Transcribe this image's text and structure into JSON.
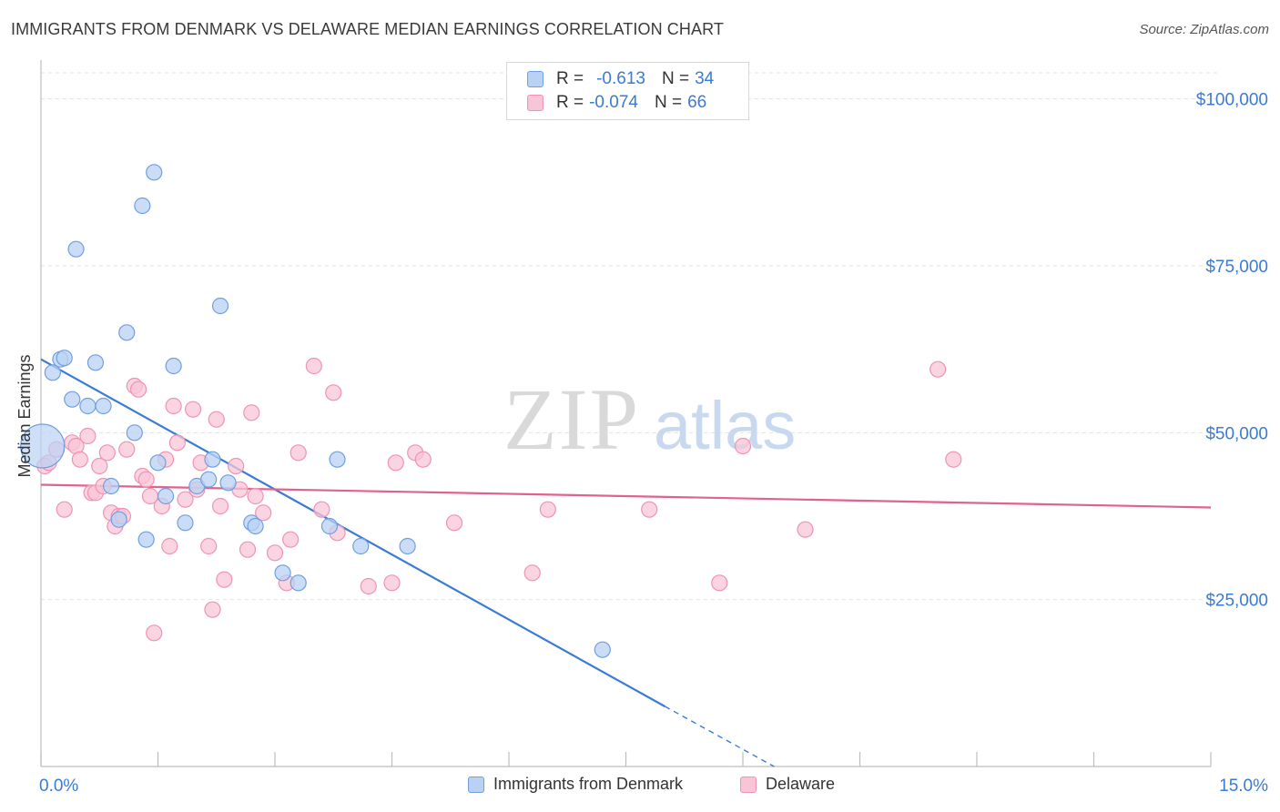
{
  "title": "IMMIGRANTS FROM DENMARK VS DELAWARE MEDIAN EARNINGS CORRELATION CHART",
  "source": "Source: ZipAtlas.com",
  "watermark": {
    "zip": "ZIP",
    "atlas": "atlas"
  },
  "colors": {
    "blue": "#3a7bd5",
    "blue_fill": "#b9d2f3",
    "blue_stroke": "#6f9fe0",
    "pink": "#e0628f",
    "pink_fill": "#f8c5d6",
    "pink_stroke": "#ef93b3",
    "axis_label": "#3a7bd5",
    "grid": "#e3e3e3"
  },
  "legend": {
    "rows": [
      {
        "r_label": "R =",
        "r_value": "-0.613",
        "n_label": "N =",
        "n_value": "34"
      },
      {
        "r_label": "R =",
        "r_value": "-0.074",
        "n_label": "N =",
        "n_value": "66"
      }
    ]
  },
  "chart_data": {
    "type": "scatter",
    "title": "IMMIGRANTS FROM DENMARK VS DELAWARE MEDIAN EARNINGS CORRELATION CHART",
    "xlabel": "",
    "ylabel": "Median Earnings",
    "xlim": [
      0,
      15
    ],
    "ylim": [
      0,
      105000
    ],
    "x_tick_labels": [
      "0.0%",
      "15.0%"
    ],
    "y_ticks": [
      25000,
      50000,
      75000,
      100000
    ],
    "y_tick_labels": [
      "$25,000",
      "$50,000",
      "$75,000",
      "$100,000"
    ],
    "grid": true,
    "legend_position": "top-center",
    "series": [
      {
        "name": "Immigrants from Denmark",
        "color": "#3a7bd5",
        "points": [
          [
            0.02,
            48000
          ],
          [
            0.15,
            59000
          ],
          [
            0.25,
            61000
          ],
          [
            0.3,
            61200
          ],
          [
            0.45,
            77500
          ],
          [
            0.4,
            55000
          ],
          [
            0.6,
            54000
          ],
          [
            0.7,
            60500
          ],
          [
            0.8,
            54000
          ],
          [
            0.9,
            42000
          ],
          [
            1.0,
            37000
          ],
          [
            1.1,
            65000
          ],
          [
            1.2,
            50000
          ],
          [
            1.3,
            84000
          ],
          [
            1.35,
            34000
          ],
          [
            1.45,
            89000
          ],
          [
            1.5,
            45500
          ],
          [
            1.6,
            40500
          ],
          [
            1.7,
            60000
          ],
          [
            1.85,
            36500
          ],
          [
            2.0,
            42000
          ],
          [
            2.15,
            43000
          ],
          [
            2.2,
            46000
          ],
          [
            2.3,
            69000
          ],
          [
            2.4,
            42500
          ],
          [
            2.7,
            36500
          ],
          [
            2.75,
            36000
          ],
          [
            3.1,
            29000
          ],
          [
            3.3,
            27500
          ],
          [
            3.7,
            36000
          ],
          [
            3.8,
            46000
          ],
          [
            4.1,
            33000
          ],
          [
            4.7,
            33000
          ],
          [
            7.2,
            17500
          ]
        ],
        "trend": {
          "x1": 0.0,
          "y1": 61000,
          "x2": 8.0,
          "y2": 9000,
          "dashed_to_x": 9.4,
          "dashed_to_y": 0
        }
      },
      {
        "name": "Delaware",
        "color": "#e0628f",
        "points": [
          [
            0.05,
            45000
          ],
          [
            0.1,
            45500
          ],
          [
            0.2,
            47500
          ],
          [
            0.3,
            38500
          ],
          [
            0.4,
            48500
          ],
          [
            0.45,
            48000
          ],
          [
            0.5,
            46000
          ],
          [
            0.6,
            49500
          ],
          [
            0.65,
            41000
          ],
          [
            0.7,
            41000
          ],
          [
            0.75,
            45000
          ],
          [
            0.8,
            42000
          ],
          [
            0.85,
            47000
          ],
          [
            0.9,
            38000
          ],
          [
            0.95,
            36000
          ],
          [
            1.0,
            37500
          ],
          [
            1.05,
            37500
          ],
          [
            1.1,
            47500
          ],
          [
            1.2,
            57000
          ],
          [
            1.25,
            56500
          ],
          [
            1.3,
            43500
          ],
          [
            1.35,
            43000
          ],
          [
            1.4,
            40500
          ],
          [
            1.45,
            20000
          ],
          [
            1.55,
            39000
          ],
          [
            1.6,
            46000
          ],
          [
            1.65,
            33000
          ],
          [
            1.7,
            54000
          ],
          [
            1.75,
            48500
          ],
          [
            1.85,
            40000
          ],
          [
            1.95,
            53500
          ],
          [
            2.0,
            41500
          ],
          [
            2.05,
            45500
          ],
          [
            2.15,
            33000
          ],
          [
            2.2,
            23500
          ],
          [
            2.25,
            52000
          ],
          [
            2.3,
            39000
          ],
          [
            2.35,
            28000
          ],
          [
            2.5,
            45000
          ],
          [
            2.55,
            41500
          ],
          [
            2.65,
            32500
          ],
          [
            2.7,
            53000
          ],
          [
            2.75,
            40500
          ],
          [
            2.85,
            38000
          ],
          [
            3.0,
            32000
          ],
          [
            3.15,
            27500
          ],
          [
            3.2,
            34000
          ],
          [
            3.3,
            47000
          ],
          [
            3.5,
            60000
          ],
          [
            3.6,
            38500
          ],
          [
            3.75,
            56000
          ],
          [
            3.8,
            35000
          ],
          [
            4.2,
            27000
          ],
          [
            4.5,
            27500
          ],
          [
            4.55,
            45500
          ],
          [
            4.8,
            47000
          ],
          [
            4.9,
            46000
          ],
          [
            5.3,
            36500
          ],
          [
            6.3,
            29000
          ],
          [
            6.5,
            38500
          ],
          [
            7.8,
            38500
          ],
          [
            8.7,
            27500
          ],
          [
            9.0,
            48000
          ],
          [
            9.8,
            35500
          ],
          [
            11.5,
            59500
          ],
          [
            11.7,
            46000
          ]
        ],
        "trend": {
          "x1": 0.0,
          "y1": 42200,
          "x2": 15.0,
          "y2": 38800
        }
      }
    ]
  }
}
